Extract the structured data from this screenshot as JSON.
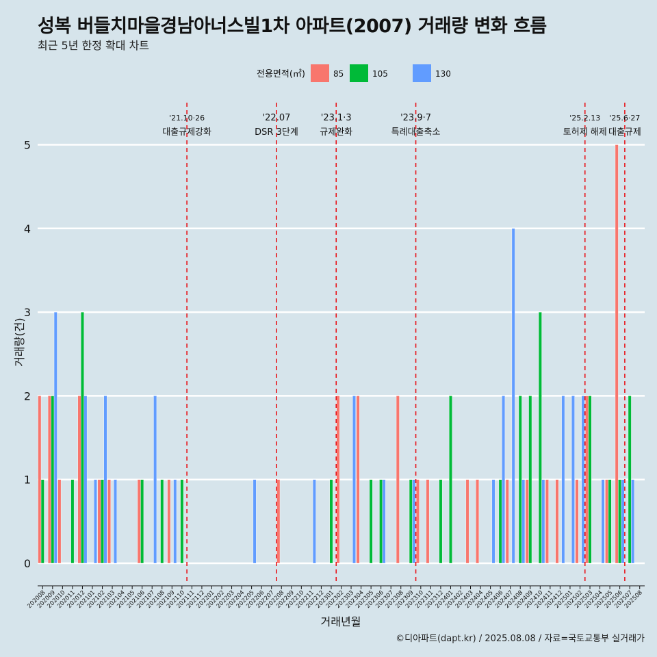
{
  "header": {
    "title": "성복 버들치마을경남아너스빌1차 아파트(2007) 거래량 변화 흐름",
    "subtitle": "최근 5년 한정 확대 차트"
  },
  "caption": "©디아파트(dapt.kr) / 2025.08.08 / 자료=국토교통부 실거래가",
  "chart_data": {
    "type": "bar",
    "xlabel": "거래년월",
    "ylabel": "거래량(건)",
    "ylim": [
      0,
      5
    ],
    "yticks": [
      0,
      1,
      2,
      3,
      4,
      5
    ],
    "grid": "horizontal",
    "legend": {
      "title": "전용면적(㎡)",
      "placement": "top"
    },
    "categories": [
      "202008",
      "202009",
      "202010",
      "202011",
      "202012",
      "202101",
      "202102",
      "202103",
      "202104",
      "202105",
      "202106",
      "202107",
      "202108",
      "202109",
      "202110",
      "202111",
      "202112",
      "202201",
      "202202",
      "202203",
      "202204",
      "202205",
      "202206",
      "202207",
      "202208",
      "202209",
      "202210",
      "202211",
      "202212",
      "202301",
      "202302",
      "202303",
      "202304",
      "202305",
      "202306",
      "202307",
      "202308",
      "202309",
      "202310",
      "202311",
      "202312",
      "202401",
      "202402",
      "202403",
      "202404",
      "202405",
      "202406",
      "202407",
      "202408",
      "202409",
      "202410",
      "202411",
      "202412",
      "202501",
      "202502",
      "202503",
      "202504",
      "202505",
      "202506",
      "202507",
      "202508"
    ],
    "series": [
      {
        "name": "85",
        "color": "#f8766d",
        "values": [
          2,
          2,
          1,
          0,
          2,
          0,
          1,
          1,
          0,
          0,
          1,
          0,
          0,
          1,
          0,
          0,
          0,
          0,
          0,
          0,
          0,
          0,
          0,
          0,
          1,
          0,
          0,
          0,
          0,
          0,
          2,
          0,
          2,
          0,
          0,
          0,
          2,
          0,
          1,
          1,
          0,
          0,
          0,
          1,
          1,
          0,
          0,
          1,
          0,
          1,
          0,
          1,
          1,
          0,
          1,
          2,
          0,
          1,
          5,
          0,
          0
        ]
      },
      {
        "name": "105",
        "color": "#00ba38",
        "values": [
          1,
          2,
          0,
          1,
          3,
          0,
          1,
          0,
          0,
          0,
          1,
          0,
          1,
          0,
          1,
          0,
          0,
          0,
          0,
          0,
          0,
          0,
          0,
          0,
          0,
          0,
          0,
          0,
          0,
          1,
          0,
          0,
          0,
          1,
          1,
          0,
          0,
          1,
          0,
          0,
          1,
          2,
          0,
          0,
          0,
          0,
          1,
          0,
          2,
          2,
          3,
          0,
          0,
          0,
          0,
          2,
          0,
          1,
          1,
          2,
          0
        ]
      },
      {
        "name": "130",
        "color": "#619cff",
        "values": [
          0,
          3,
          0,
          0,
          2,
          1,
          2,
          1,
          0,
          0,
          0,
          2,
          0,
          1,
          0,
          0,
          0,
          0,
          0,
          0,
          0,
          1,
          0,
          0,
          0,
          0,
          0,
          1,
          0,
          0,
          0,
          2,
          0,
          0,
          1,
          0,
          0,
          1,
          0,
          0,
          0,
          0,
          0,
          0,
          0,
          1,
          2,
          4,
          1,
          0,
          1,
          0,
          2,
          2,
          2,
          0,
          1,
          0,
          1,
          1,
          0
        ]
      }
    ],
    "events": [
      {
        "index": 14.5,
        "date": "'21.10·26",
        "label": "대출규제강화"
      },
      {
        "index": 23.5,
        "date": "'22.07",
        "label": "DSR 3단계"
      },
      {
        "index": 29.5,
        "date": "'23.1·3",
        "label": "규제완화"
      },
      {
        "index": 37.5,
        "date": "'23.9·7",
        "label": "특례대출축소"
      },
      {
        "index": 54.5,
        "date": "'25.2.13",
        "label": "토허제 해제"
      },
      {
        "index": 58.5,
        "date": "'25.6·27",
        "label": "대출규제"
      }
    ]
  }
}
